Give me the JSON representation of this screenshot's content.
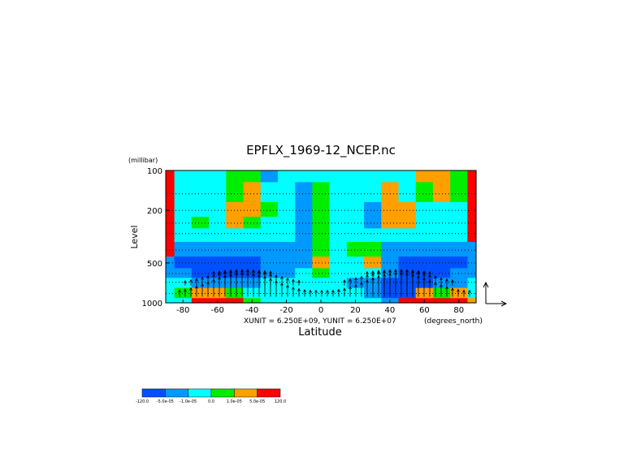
{
  "chart_data": {
    "type": "heatmap",
    "title": "EPFLX_1969-12_NCEP.nc",
    "xlabel": "Latitude",
    "ylabel": "Level",
    "y_unit_label": "(millibar)",
    "x_unit_label": "(degrees_north)",
    "vector_units_label": "XUNIT = 6.250E+09, YUNIT = 6.250E+07",
    "xlim": [
      -90,
      90
    ],
    "ylim": [
      1000,
      100
    ],
    "y_scale": "log",
    "x_ticks": [
      -80,
      -60,
      -40,
      -20,
      0,
      20,
      40,
      60,
      80
    ],
    "x_tick_labels": [
      "-80",
      "-60",
      "-40",
      "-20",
      "0",
      "20",
      "40",
      "60",
      "80"
    ],
    "y_ticks": [
      100,
      200,
      500,
      1000
    ],
    "y_tick_labels": [
      "100",
      "200",
      "500",
      "1000"
    ],
    "grid": "dotted horizontal lines",
    "colorbar": {
      "colors": [
        "#0050ff",
        "#0099ff",
        "#00ffff",
        "#00ee00",
        "#ffa000",
        "#ff0000"
      ],
      "boundary_labels": [
        "-120.0",
        "-5.0e-05",
        "-1.0e-05",
        "0.0",
        "1.0e-05",
        "5.0e-05",
        "120.0"
      ]
    },
    "lat": [
      -90,
      -80,
      -70,
      -60,
      -50,
      -40,
      -30,
      -20,
      -10,
      0,
      10,
      20,
      30,
      40,
      50,
      60,
      70,
      80,
      90
    ],
    "levels": [
      100,
      150,
      200,
      250,
      300,
      400,
      500,
      600,
      700,
      850,
      1000
    ],
    "level_classes": [
      [
        5,
        2,
        2,
        2,
        3,
        3,
        1,
        2,
        2,
        2,
        2,
        2,
        2,
        2,
        2,
        4,
        4,
        3,
        5
      ],
      [
        5,
        2,
        2,
        2,
        3,
        4,
        2,
        2,
        1,
        3,
        2,
        2,
        2,
        4,
        2,
        3,
        4,
        3,
        5
      ],
      [
        5,
        2,
        2,
        2,
        4,
        4,
        3,
        2,
        1,
        3,
        2,
        2,
        1,
        4,
        4,
        2,
        2,
        2,
        5
      ],
      [
        5,
        2,
        3,
        2,
        4,
        3,
        2,
        2,
        1,
        3,
        2,
        2,
        1,
        4,
        4,
        2,
        2,
        2,
        5
      ],
      [
        5,
        2,
        2,
        2,
        2,
        2,
        2,
        2,
        1,
        3,
        2,
        2,
        2,
        2,
        2,
        2,
        2,
        2,
        5
      ],
      [
        5,
        1,
        1,
        1,
        1,
        1,
        1,
        1,
        1,
        3,
        2,
        3,
        3,
        1,
        1,
        1,
        1,
        1,
        1
      ],
      [
        1,
        0,
        0,
        0,
        0,
        0,
        1,
        1,
        1,
        4,
        2,
        2,
        4,
        1,
        0,
        0,
        0,
        0,
        1
      ],
      [
        1,
        1,
        0,
        0,
        0,
        0,
        1,
        1,
        2,
        3,
        2,
        2,
        2,
        1,
        0,
        0,
        0,
        1,
        1
      ],
      [
        2,
        2,
        1,
        1,
        1,
        1,
        2,
        2,
        2,
        2,
        2,
        1,
        1,
        0,
        0,
        0,
        1,
        1,
        2
      ],
      [
        2,
        3,
        4,
        4,
        3,
        2,
        2,
        2,
        2,
        2,
        2,
        2,
        1,
        0,
        0,
        4,
        3,
        4,
        2
      ],
      [
        2,
        2,
        5,
        5,
        5,
        3,
        2,
        2,
        2,
        2,
        2,
        2,
        2,
        1,
        5,
        5,
        5,
        5,
        4
      ]
    ]
  }
}
